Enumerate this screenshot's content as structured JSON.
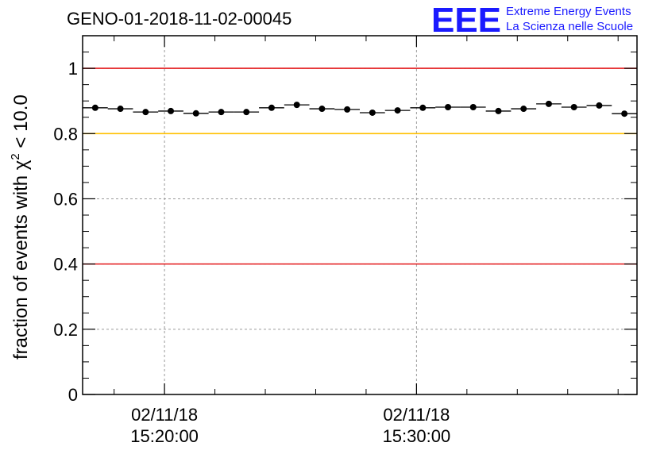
{
  "chart_data": {
    "type": "scatter",
    "title": "GENO-01-2018-11-02-00045",
    "ylabel_prefix": "fraction of events with ",
    "ylabel_symbol": "χ",
    "ylabel_exponent": "2",
    "ylabel_suffix": " < 10.0",
    "xlabel": "",
    "ylim": [
      0,
      1.1
    ],
    "xlim_minutes": [
      15.75,
      37.75
    ],
    "y_ticks": [
      {
        "value": 0,
        "label": "0"
      },
      {
        "value": 0.2,
        "label": "0.2"
      },
      {
        "value": 0.4,
        "label": "0.4"
      },
      {
        "value": 0.6,
        "label": "0.6"
      },
      {
        "value": 0.8,
        "label": "0.8"
      },
      {
        "value": 1,
        "label": "1"
      }
    ],
    "x_ticks": [
      {
        "minutes": 19,
        "date": "02/11/18",
        "time": "15:20:00"
      },
      {
        "minutes": 29,
        "date": "02/11/18",
        "time": "15:30:00"
      }
    ],
    "grid": true,
    "reference_lines": [
      {
        "y": 1.0,
        "color": "#e41a1c"
      },
      {
        "y": 0.8,
        "color": "#ffc000"
      },
      {
        "y": 0.4,
        "color": "#e41a1c"
      }
    ],
    "series": [
      {
        "bin_width_minutes": 1,
        "x_minutes": [
          16.25,
          17.25,
          18.25,
          19.25,
          20.25,
          21.25,
          22.25,
          23.25,
          24.25,
          25.25,
          26.25,
          27.25,
          28.25,
          29.25,
          30.25,
          31.25,
          32.25,
          33.25,
          34.25,
          35.25,
          36.25,
          37.25
        ],
        "values": [
          0.879,
          0.876,
          0.866,
          0.869,
          0.862,
          0.866,
          0.866,
          0.879,
          0.888,
          0.876,
          0.874,
          0.864,
          0.871,
          0.879,
          0.881,
          0.881,
          0.869,
          0.876,
          0.891,
          0.881,
          0.886,
          0.861
        ]
      }
    ]
  },
  "logo": {
    "letters": "EEE",
    "line1": "Extreme Energy Events",
    "line2": "La Scienza nelle Scuole"
  },
  "colors": {
    "marker": "#000000",
    "logo": "#1a1aff",
    "grid": "#9a9a9a"
  }
}
